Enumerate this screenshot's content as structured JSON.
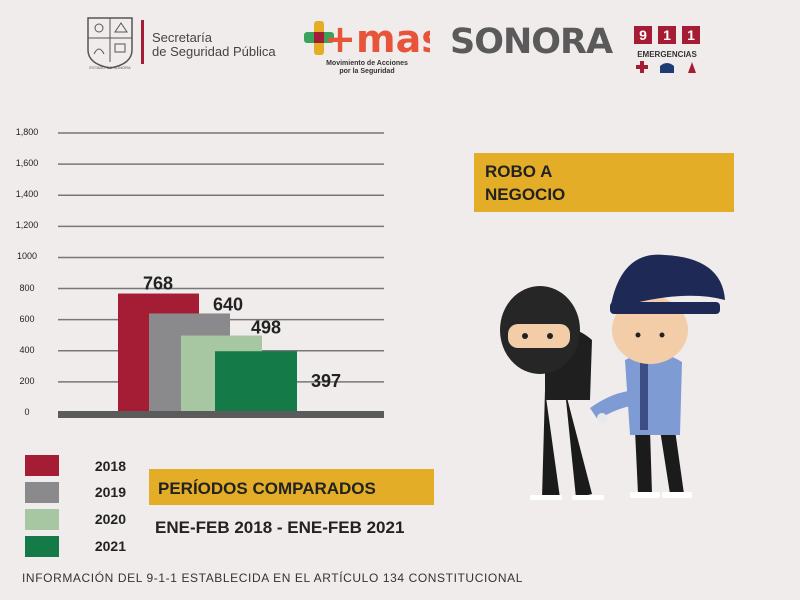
{
  "header": {
    "seal_caption": "ESTADO DE SONORA",
    "ssp_line1": "Secretaría",
    "ssp_line2": "de Seguridad Pública",
    "mas_logo": "+mas",
    "mas_sub_line1": "Movimiento de Acciones",
    "mas_sub_line2": "por la Seguridad",
    "sonora_logo": "SONORA",
    "sos_digits": [
      "9",
      "1",
      "1"
    ],
    "sos_label": "EMERGENCIAS"
  },
  "crime_type": {
    "line1": "ROBO A",
    "line2": "NEGOCIO"
  },
  "chart_data": {
    "type": "bar",
    "categories": [
      "2018",
      "2019",
      "2020",
      "2021"
    ],
    "values": [
      768,
      640,
      498,
      397
    ],
    "value_labels": [
      "768",
      "640",
      "498",
      "397"
    ],
    "colors": [
      "#a51d34",
      "#8a8a8c",
      "#a7c6a2",
      "#137a48"
    ],
    "yticks": [
      0,
      200,
      400,
      600,
      800,
      1000,
      1200,
      1400,
      1600,
      1800
    ],
    "ytick_labels": [
      "0",
      "200",
      "400",
      "600",
      "800",
      "1000",
      "1,200",
      "1,400",
      "1,600",
      "1,800"
    ],
    "ylim": [
      0,
      1800
    ],
    "grid": true,
    "legend_position": "bottom-left",
    "title": "",
    "xlabel": "",
    "ylabel": ""
  },
  "legend": [
    {
      "label": "2018",
      "color": "#a51d34"
    },
    {
      "label": "2019",
      "color": "#8a8a8c"
    },
    {
      "label": "2020",
      "color": "#a7c6a2"
    },
    {
      "label": "2021",
      "color": "#137a48"
    }
  ],
  "periods": {
    "title": "PERÍODOS COMPARADOS",
    "range": "ENE-FEB 2018 - ENE-FEB 2021"
  },
  "footer": "INFORMACIÓN DEL 9-1-1 ESTABLECIDA EN EL ARTÍCULO 134 CONSTITUCIONAL"
}
